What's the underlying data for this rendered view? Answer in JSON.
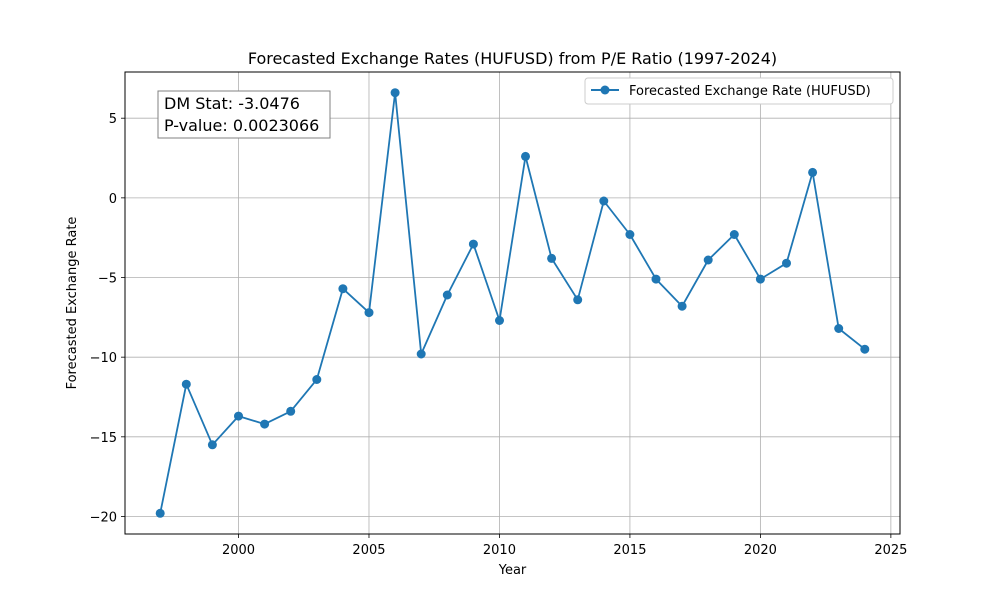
{
  "chart_data": {
    "type": "line",
    "title": "Forecasted Exchange Rates (HUFUSD) from P/E Ratio (1997-2024)",
    "xlabel": "Year",
    "ylabel": "Forecasted Exchange Rate",
    "xlim": [
      1995.65,
      2025.35
    ],
    "ylim": [
      -21.1,
      7.9
    ],
    "x_ticks": [
      2000,
      2005,
      2010,
      2015,
      2020,
      2025
    ],
    "y_ticks": [
      -20,
      -15,
      -10,
      -5,
      0,
      5
    ],
    "grid": true,
    "legend_position": "top-right",
    "series": [
      {
        "name": "Forecasted Exchange Rate (HUFUSD)",
        "color": "#1f77b4",
        "marker": "circle",
        "x": [
          1997,
          1998,
          1999,
          2000,
          2001,
          2002,
          2003,
          2004,
          2005,
          2006,
          2007,
          2008,
          2009,
          2010,
          2011,
          2012,
          2013,
          2014,
          2015,
          2016,
          2017,
          2018,
          2019,
          2020,
          2021,
          2022,
          2023,
          2024
        ],
        "values": [
          -19.8,
          -11.7,
          -15.5,
          -13.7,
          -14.2,
          -13.4,
          -11.4,
          -5.7,
          -7.2,
          6.6,
          -9.8,
          -6.1,
          -2.9,
          -7.7,
          2.6,
          -3.8,
          -6.4,
          -0.2,
          -2.3,
          -5.1,
          -6.8,
          -3.9,
          -2.3,
          -5.1,
          -4.1,
          1.6,
          -8.2,
          -9.5
        ]
      }
    ],
    "annotation": {
      "lines": [
        "DM Stat: -3.0476",
        "P-value: 0.0023066"
      ],
      "position": "top-left"
    }
  }
}
